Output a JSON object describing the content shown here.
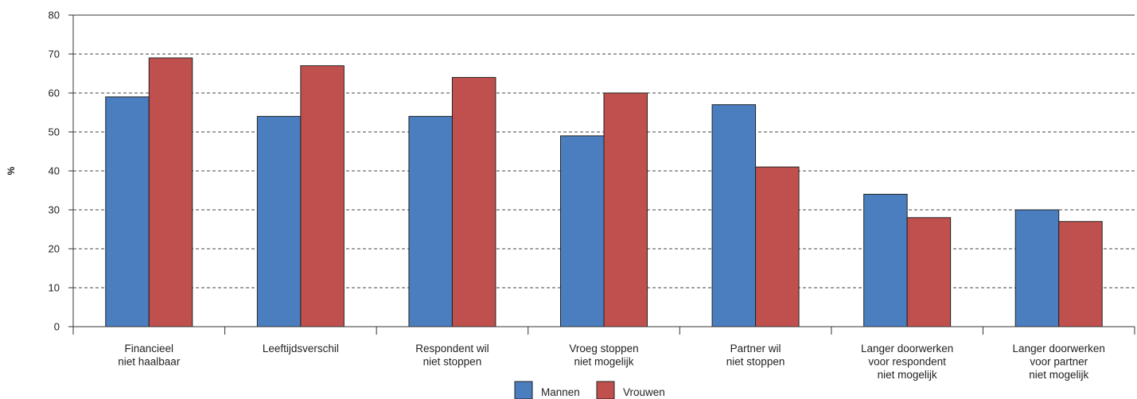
{
  "chart_data": {
    "type": "bar",
    "title": "",
    "xlabel": "",
    "ylabel": "%",
    "ylim": [
      0,
      80
    ],
    "yticks": [
      0,
      10,
      20,
      30,
      40,
      50,
      60,
      70,
      80
    ],
    "grid": true,
    "legend_position": "bottom-center",
    "categories": [
      [
        "Financieel",
        "niet haalbaar"
      ],
      [
        "Leeftijdsverschil"
      ],
      [
        "Respondent wil",
        "niet stoppen"
      ],
      [
        "Vroeg stoppen",
        "niet mogelijk"
      ],
      [
        "Partner wil",
        "niet stoppen"
      ],
      [
        "Langer doorwerken",
        "voor respondent",
        "niet mogelijk"
      ],
      [
        "Langer doorwerken",
        "voor partner",
        "niet mogelijk"
      ]
    ],
    "series": [
      {
        "name": "Mannen",
        "color": "#4a7ebf",
        "values": [
          59,
          54,
          54,
          49,
          57,
          34,
          30
        ]
      },
      {
        "name": "Vrouwen",
        "color": "#c0504d",
        "values": [
          69,
          67,
          64,
          60,
          41,
          28,
          27
        ]
      }
    ]
  }
}
